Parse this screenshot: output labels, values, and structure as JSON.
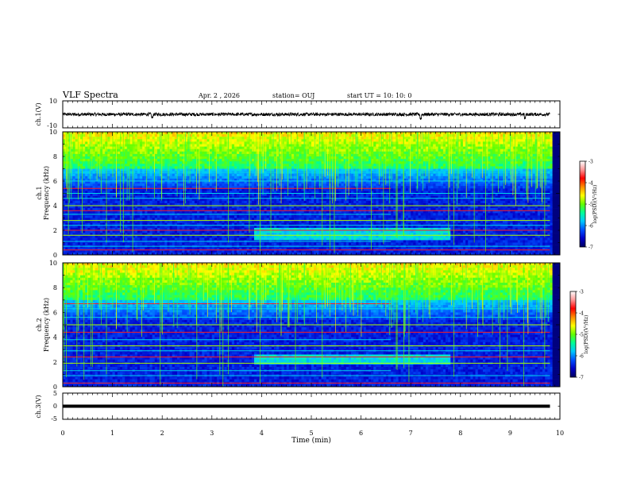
{
  "header": {
    "title": "VLF Spectra",
    "date": "Apr. 2 , 2026",
    "station": "station= OUJ",
    "start": "start  UT  =    10: 10: 0"
  },
  "colors": {
    "background": "#ffffff",
    "axes": "#000000",
    "colormap": [
      "#000060",
      "#0000c8",
      "#0050ff",
      "#00c8ff",
      "#00ff96",
      "#64ff00",
      "#ffff00",
      "#ff8c00",
      "#ff0000",
      "#ff9696",
      "#ffffff"
    ]
  },
  "chart_data": [
    {
      "type": "line",
      "panel": "ch1-waveform",
      "ylabel": "ch.1(V)",
      "ylim": [
        -10,
        10
      ],
      "yticks": [
        "10",
        "-10"
      ],
      "xlim": [
        0,
        10
      ],
      "x": [
        0,
        1,
        1.8,
        2,
        3,
        4,
        5,
        6,
        7,
        7.2,
        8,
        9,
        9.3,
        9.8
      ],
      "y": [
        0,
        0.3,
        -2.5,
        0.2,
        -0.2,
        0.1,
        0.3,
        -0.2,
        0.2,
        -3.0,
        0.1,
        0.4,
        -2.8,
        0.2
      ],
      "envelope": 1.2
    },
    {
      "type": "heatmap",
      "panel": "ch1-spectrogram",
      "ylabel": "ch.1\nFrequency (kHz)",
      "ylim": [
        0,
        10
      ],
      "yticks": [
        "0",
        "2",
        "4",
        "6",
        "8",
        "10"
      ],
      "xlim": [
        0,
        10
      ],
      "colorbar": {
        "label": "log(PSD)(V²/Hz)",
        "range": [
          -7,
          -3
        ],
        "ticks": [
          "-3",
          "-4",
          "-5",
          "-6",
          "-7"
        ]
      },
      "lines_khz": [
        0.4,
        0.7,
        1.1,
        1.6,
        2.0,
        2.4,
        2.8,
        3.3,
        3.6,
        4.0,
        4.6,
        5.0,
        5.4,
        6.0,
        6.7
      ],
      "bright_band_khz": [
        1.2,
        2.2
      ],
      "bright_band_end_min": 7.8,
      "upper_band_khz": [
        7.0,
        10.0
      ]
    },
    {
      "type": "heatmap",
      "panel": "ch2-spectrogram",
      "ylabel": "ch.2\nFrequency (kHz)",
      "ylim": [
        0,
        10
      ],
      "yticks": [
        "0",
        "2",
        "4",
        "6",
        "8",
        "10"
      ],
      "xlim": [
        0,
        10
      ],
      "colorbar": {
        "label": "log(PSD)(V²/Hz)",
        "range": [
          -7,
          -3
        ],
        "ticks": [
          "-3",
          "-4",
          "-5",
          "-6",
          "-7"
        ]
      },
      "lines_khz": [
        0.3,
        0.9,
        1.3,
        1.9,
        2.4,
        2.9,
        3.3,
        3.8,
        4.4,
        5.0,
        5.6,
        6.3,
        6.7
      ],
      "bright_band_khz": [
        1.8,
        2.5
      ],
      "bright_band_end_min": 7.8,
      "upper_band_khz": [
        7.0,
        10.0
      ]
    },
    {
      "type": "line",
      "panel": "ch3-waveform",
      "ylabel": "ch.3(V)",
      "ylim": [
        -5,
        5
      ],
      "yticks": [
        "5",
        "0",
        "-5"
      ],
      "xlim": [
        0,
        10
      ],
      "xlabel": "Time  (min)",
      "xticks": [
        "0",
        "1",
        "2",
        "3",
        "4",
        "5",
        "6",
        "7",
        "8",
        "9",
        "10"
      ],
      "x": [
        0,
        9.8
      ],
      "y": [
        0,
        0
      ]
    }
  ]
}
